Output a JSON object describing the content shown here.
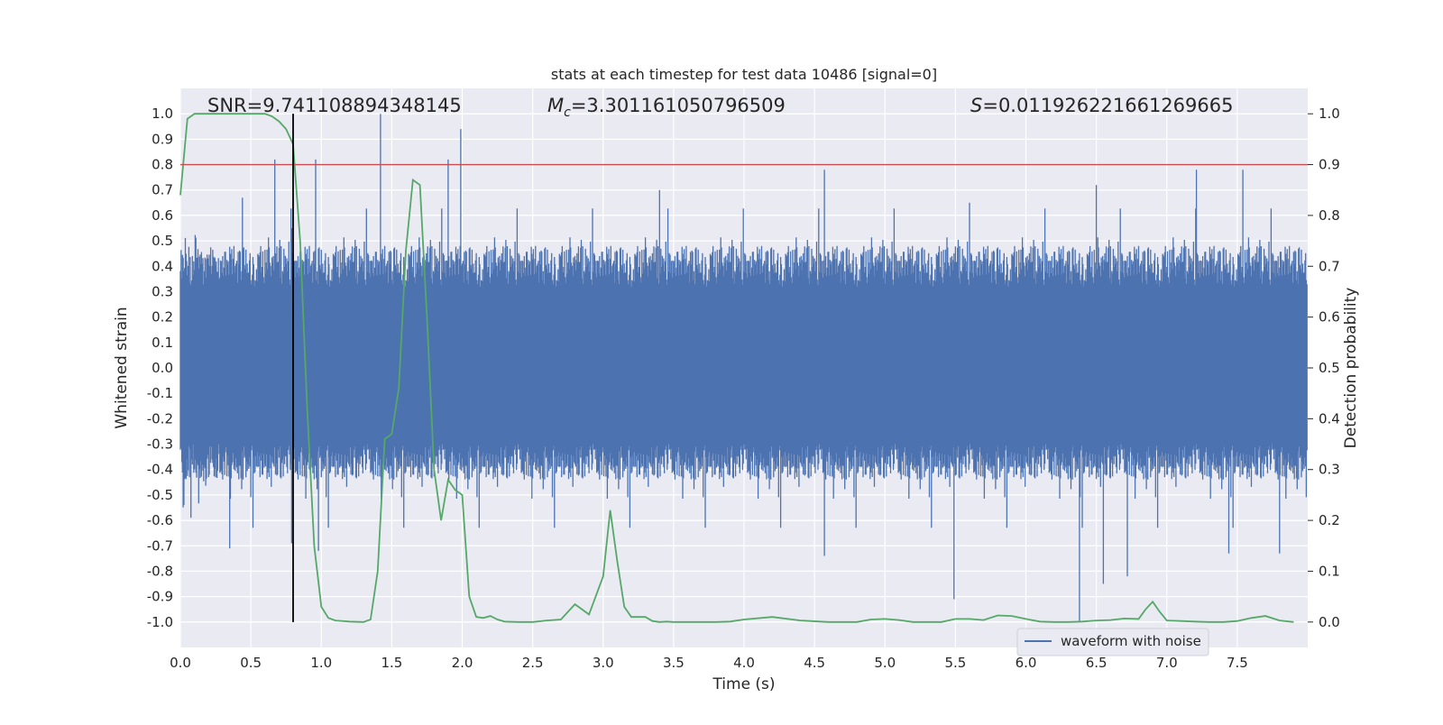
{
  "chart_data": {
    "type": "line",
    "title": "stats at each timestep for test data 10486 [signal=0]",
    "xlabel": "Time (s)",
    "ylabel": "Whitened strain",
    "y2label": "Detection probability",
    "xlim": [
      0,
      8
    ],
    "ylim": [
      -1.1,
      1.1
    ],
    "y2lim": [
      -0.05,
      1.05
    ],
    "xticks": [
      "0.0",
      "0.5",
      "1.0",
      "1.5",
      "2.0",
      "2.5",
      "3.0",
      "3.5",
      "4.0",
      "4.5",
      "5.0",
      "5.5",
      "6.0",
      "6.5",
      "7.0",
      "7.5"
    ],
    "yticks": [
      "1.0",
      "0.9",
      "0.8",
      "0.7",
      "0.6",
      "0.5",
      "0.4",
      "0.3",
      "0.2",
      "0.1",
      "0.0",
      "-0.1",
      "-0.2",
      "-0.3",
      "-0.4",
      "-0.5",
      "-0.6",
      "-0.7",
      "-0.8",
      "-0.9",
      "-1.0"
    ],
    "y2ticks": [
      "1.0",
      "0.9",
      "0.8",
      "0.7",
      "0.6",
      "0.5",
      "0.4",
      "0.3",
      "0.2",
      "0.1",
      "0.0"
    ],
    "grid": true,
    "legend_position": "lower-right",
    "annotations": {
      "snr": "SNR=9.741108894348145",
      "mc_symbol": "M",
      "mc_sub": "c",
      "mc_value": "=3.301161050796509",
      "s_symbol": "S",
      "s_value": "=0.011926221661269665"
    },
    "threshold": {
      "value": 0.9,
      "axis": "right",
      "color": "#c44e52"
    },
    "marker_time": 0.8,
    "marker_range": [
      -1.0,
      1.0
    ],
    "series": [
      {
        "name": "waveform with noise",
        "axis": "left",
        "color": "#4c72b0",
        "envelope_peaks": [
          {
            "x": 0.44,
            "y": 0.67
          },
          {
            "x": 0.67,
            "y": 0.82
          },
          {
            "x": 0.79,
            "y": 0.55
          },
          {
            "x": 0.96,
            "y": 0.82
          },
          {
            "x": 1.42,
            "y": 1.0
          },
          {
            "x": 1.9,
            "y": 0.82
          },
          {
            "x": 1.99,
            "y": 0.94
          },
          {
            "x": 3.4,
            "y": 0.7
          },
          {
            "x": 4.57,
            "y": 0.78
          },
          {
            "x": 5.6,
            "y": 0.65
          },
          {
            "x": 6.5,
            "y": 0.72
          },
          {
            "x": 7.21,
            "y": 0.78
          },
          {
            "x": 7.54,
            "y": 0.78
          }
        ],
        "envelope_troughs": [
          {
            "x": 0.35,
            "y": -0.71
          },
          {
            "x": 0.79,
            "y": -0.69
          },
          {
            "x": 0.98,
            "y": -0.72
          },
          {
            "x": 4.57,
            "y": -0.74
          },
          {
            "x": 5.49,
            "y": -0.91
          },
          {
            "x": 6.38,
            "y": -1.0
          },
          {
            "x": 6.55,
            "y": -0.85
          },
          {
            "x": 6.72,
            "y": -0.82
          },
          {
            "x": 7.44,
            "y": -0.73
          },
          {
            "x": 7.8,
            "y": -0.73
          }
        ]
      },
      {
        "name": "",
        "axis": "right",
        "color": "#55a868",
        "x": [
          0.0,
          0.05,
          0.1,
          0.2,
          0.3,
          0.4,
          0.5,
          0.6,
          0.65,
          0.7,
          0.75,
          0.8,
          0.85,
          0.9,
          0.95,
          1.0,
          1.05,
          1.1,
          1.2,
          1.3,
          1.35,
          1.4,
          1.45,
          1.5,
          1.55,
          1.6,
          1.65,
          1.7,
          1.75,
          1.8,
          1.85,
          1.9,
          1.95,
          2.0,
          2.05,
          2.1,
          2.15,
          2.2,
          2.25,
          2.3,
          2.4,
          2.5,
          2.6,
          2.7,
          2.8,
          2.9,
          3.0,
          3.05,
          3.1,
          3.15,
          3.2,
          3.25,
          3.3,
          3.35,
          3.4,
          3.45,
          3.5,
          3.6,
          3.7,
          3.8,
          3.9,
          4.0,
          4.2,
          4.4,
          4.6,
          4.7,
          4.8,
          4.9,
          5.0,
          5.1,
          5.2,
          5.3,
          5.4,
          5.5,
          5.6,
          5.7,
          5.8,
          5.9,
          6.0,
          6.1,
          6.2,
          6.3,
          6.4,
          6.5,
          6.6,
          6.7,
          6.8,
          6.85,
          6.9,
          6.95,
          7.0,
          7.1,
          7.2,
          7.3,
          7.4,
          7.5,
          7.6,
          7.7,
          7.8,
          7.9
        ],
        "y": [
          0.84,
          0.99,
          1.0,
          1.0,
          1.0,
          1.0,
          1.0,
          1.0,
          0.995,
          0.985,
          0.97,
          0.94,
          0.75,
          0.42,
          0.15,
          0.03,
          0.008,
          0.003,
          0.001,
          0.0,
          0.005,
          0.1,
          0.36,
          0.37,
          0.46,
          0.73,
          0.87,
          0.86,
          0.6,
          0.3,
          0.2,
          0.28,
          0.26,
          0.25,
          0.05,
          0.01,
          0.008,
          0.012,
          0.005,
          0.001,
          0.0,
          0.0,
          0.003,
          0.005,
          0.035,
          0.015,
          0.09,
          0.22,
          0.12,
          0.03,
          0.01,
          0.01,
          0.01,
          0.002,
          0.0,
          0.001,
          0.0,
          0.0,
          0.0,
          0.0,
          0.001,
          0.005,
          0.01,
          0.003,
          0.0,
          0.0,
          0.0,
          0.005,
          0.006,
          0.004,
          0.0,
          0.0,
          0.0,
          0.006,
          0.006,
          0.004,
          0.013,
          0.012,
          0.006,
          0.001,
          0.0,
          0.0,
          0.001,
          0.003,
          0.004,
          0.007,
          0.006,
          0.025,
          0.04,
          0.02,
          0.003,
          0.002,
          0.001,
          0.0,
          0.0,
          0.002,
          0.008,
          0.012,
          0.003,
          0.0
        ]
      }
    ]
  }
}
